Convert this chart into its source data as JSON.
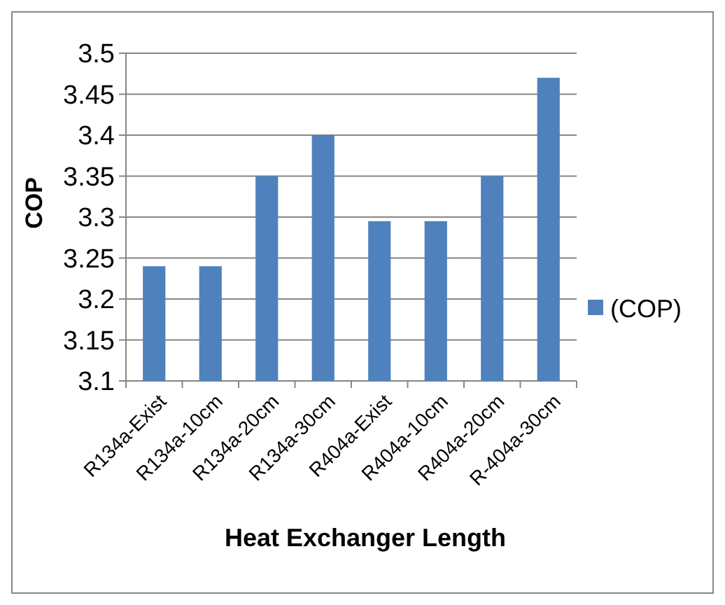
{
  "chart_data": {
    "type": "bar",
    "xlabel": "Heat Exchanger Length",
    "ylabel": "COP",
    "categories": [
      "R134a-Exist",
      "R134a-10cm",
      "R134a-20cm",
      "R134a-30cm",
      "R404a-Exist",
      "R404a-10cm",
      "R404a-20cm",
      "R-404a-30cm"
    ],
    "series": [
      {
        "name": "(COP)",
        "color": "#4f81bd",
        "values": [
          3.24,
          3.24,
          3.35,
          3.4,
          3.295,
          3.295,
          3.35,
          3.47
        ]
      }
    ],
    "ylim": [
      3.1,
      3.5
    ],
    "yticks": [
      3.1,
      3.15,
      3.2,
      3.25,
      3.3,
      3.35,
      3.4,
      3.45,
      3.5
    ],
    "grid": "y",
    "legend": "right"
  }
}
